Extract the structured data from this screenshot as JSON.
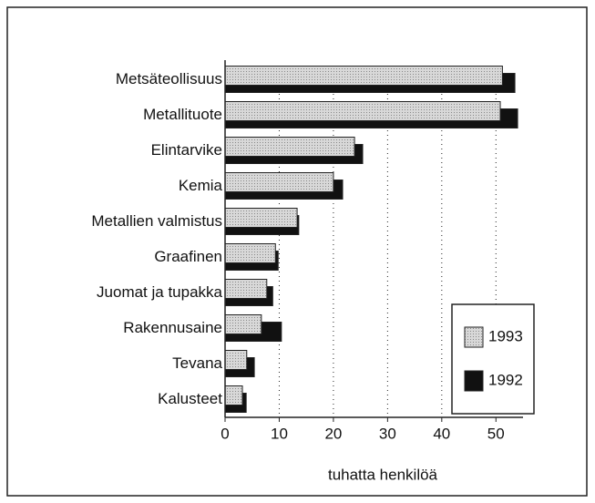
{
  "chart_data": {
    "type": "barh",
    "categories": [
      "Metsäteollisuus",
      "Metallituote",
      "Elintarvike",
      "Kemia",
      "Metallien valmistus",
      "Graafinen",
      "Juomat ja tupakka",
      "Rakennusaine",
      "Tevana",
      "Kalusteet"
    ],
    "series": [
      {
        "name": "1993",
        "color": "#c4c4c4",
        "values": [
          51.2,
          50.8,
          23.9,
          20,
          13.3,
          9.3,
          7.7,
          6.7,
          4,
          3.2
        ]
      },
      {
        "name": "1992",
        "color": "#111111",
        "values": [
          53.5,
          54,
          25.4,
          21.7,
          13.6,
          9.8,
          8.8,
          10.4,
          5.4,
          3.9
        ]
      }
    ],
    "xlabel": "tuhatta henkilöä",
    "xlim": [
      0,
      55
    ],
    "xticks": [
      0,
      10,
      20,
      30,
      40,
      50
    ],
    "grid": true,
    "legend": "lower right"
  }
}
